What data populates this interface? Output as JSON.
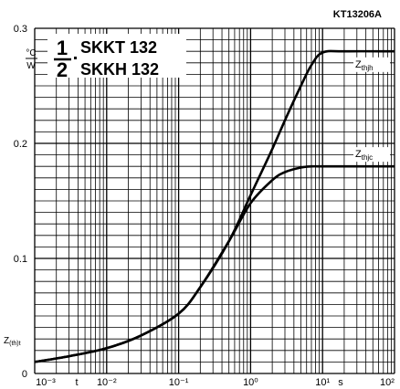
{
  "figure_code": "KT13206A",
  "title": {
    "numerator": "1",
    "denominator": "2",
    "line1": "SKKT 132",
    "line2": "SKKH 132"
  },
  "y_unit": {
    "top": "°C",
    "bottom": "W"
  },
  "y_axis_label": "Z(th)t",
  "x_axis_unit": "s",
  "x_axis_mark_t": "t",
  "colors": {
    "line": "#000000",
    "grid": "#000000",
    "background": "#ffffff"
  },
  "chart_data": {
    "type": "line",
    "x_scale": "log",
    "y_scale": "linear",
    "xlim": [
      0.001,
      100
    ],
    "ylim": [
      0,
      0.3
    ],
    "x_tick_labels": [
      "10⁻³",
      "10⁻²",
      "10⁻¹",
      "10⁰",
      "10¹",
      "10²"
    ],
    "y_tick_labels": [
      "0",
      "0.1",
      "0.2",
      "0.3"
    ],
    "series": [
      {
        "name": "Zthjh",
        "label_main": "Z",
        "label_sub": "thjh",
        "x": [
          0.001,
          0.003,
          0.01,
          0.03,
          0.1,
          0.2,
          0.5,
          1,
          2,
          3,
          5,
          7,
          10,
          20,
          100
        ],
        "y": [
          0.01,
          0.015,
          0.022,
          0.033,
          0.052,
          0.075,
          0.115,
          0.155,
          0.195,
          0.22,
          0.25,
          0.268,
          0.279,
          0.28,
          0.28
        ]
      },
      {
        "name": "Zthjc",
        "label_main": "Z",
        "label_sub": "thjc",
        "x": [
          0.001,
          0.003,
          0.01,
          0.03,
          0.1,
          0.2,
          0.5,
          1,
          2,
          3,
          5,
          7,
          10,
          20,
          100
        ],
        "y": [
          0.01,
          0.015,
          0.022,
          0.033,
          0.052,
          0.075,
          0.115,
          0.148,
          0.168,
          0.175,
          0.179,
          0.18,
          0.18,
          0.18,
          0.18
        ]
      }
    ]
  }
}
